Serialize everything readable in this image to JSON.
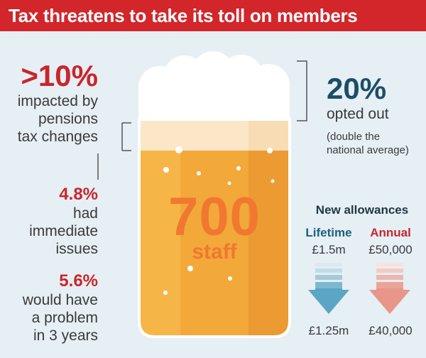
{
  "title": "Tax threatens to take its toll on members",
  "left": {
    "impacted": {
      "value": ">10%",
      "text_lines": [
        "impacted by",
        "pensions",
        "tax changes"
      ]
    },
    "immediate": {
      "value": "4.8%",
      "text_lines": [
        "had",
        "immediate",
        "issues"
      ]
    },
    "future": {
      "value": "5.6%",
      "text_lines": [
        "would have",
        "a problem",
        "in 3 years"
      ]
    }
  },
  "glass": {
    "number": "700",
    "label": "staff"
  },
  "right": {
    "opted": {
      "value": "20%",
      "text": "opted out",
      "note_lines": [
        "(double the",
        "national average)"
      ]
    }
  },
  "allowances": {
    "heading": "New allowances",
    "lifetime": {
      "label": "Lifetime",
      "old": "£1.5m",
      "new": "£1.25m"
    },
    "annual": {
      "label": "Annual",
      "old": "£50,000",
      "new": "£40,000"
    }
  },
  "colors": {
    "title_bg": "#d2262b",
    "accent_red": "#c8262c",
    "accent_navy": "#1c4e66",
    "lifetime_arrow": "#5aa6c4",
    "annual_arrow": "#e8968a",
    "beer": "#f5a93a"
  }
}
